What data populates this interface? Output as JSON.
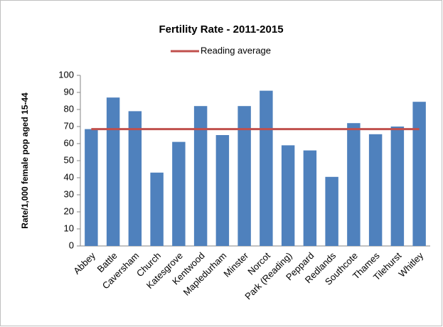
{
  "chart_data": {
    "type": "bar",
    "title": "Fertility Rate - 2011-2015",
    "y_label": "Rate/1,000 female pop aged 15-44",
    "categories": [
      "Abbey",
      "Battle",
      "Caversham",
      "Church",
      "Katesgrove",
      "Kentwood",
      "Mapledurham",
      "Minster",
      "Norcot",
      "Park (Reading)",
      "Peppard",
      "Redlands",
      "Southcote",
      "Thames",
      "Tilehurst",
      "Whitley"
    ],
    "series": [
      {
        "color": "#4f81bd",
        "values": [
          68.5,
          87,
          79,
          43,
          61,
          82,
          65,
          82,
          91,
          59,
          56,
          40.5,
          72,
          65.5,
          70,
          84.5
        ]
      },
      {
        "name": "Reading average",
        "type": "line",
        "color": "#c0504d",
        "values": [
          68.5,
          68.5,
          68.5,
          68.5,
          68.5,
          68.5,
          68.5,
          68.5,
          68.5,
          68.5,
          68.5,
          68.5,
          68.5,
          68.5,
          68.5,
          68.5
        ]
      }
    ],
    "ylim": [
      0,
      100
    ],
    "yticks": [
      0,
      10,
      20,
      30,
      40,
      50,
      60,
      70,
      80,
      90,
      100
    ],
    "grid": false,
    "legend": "top"
  }
}
